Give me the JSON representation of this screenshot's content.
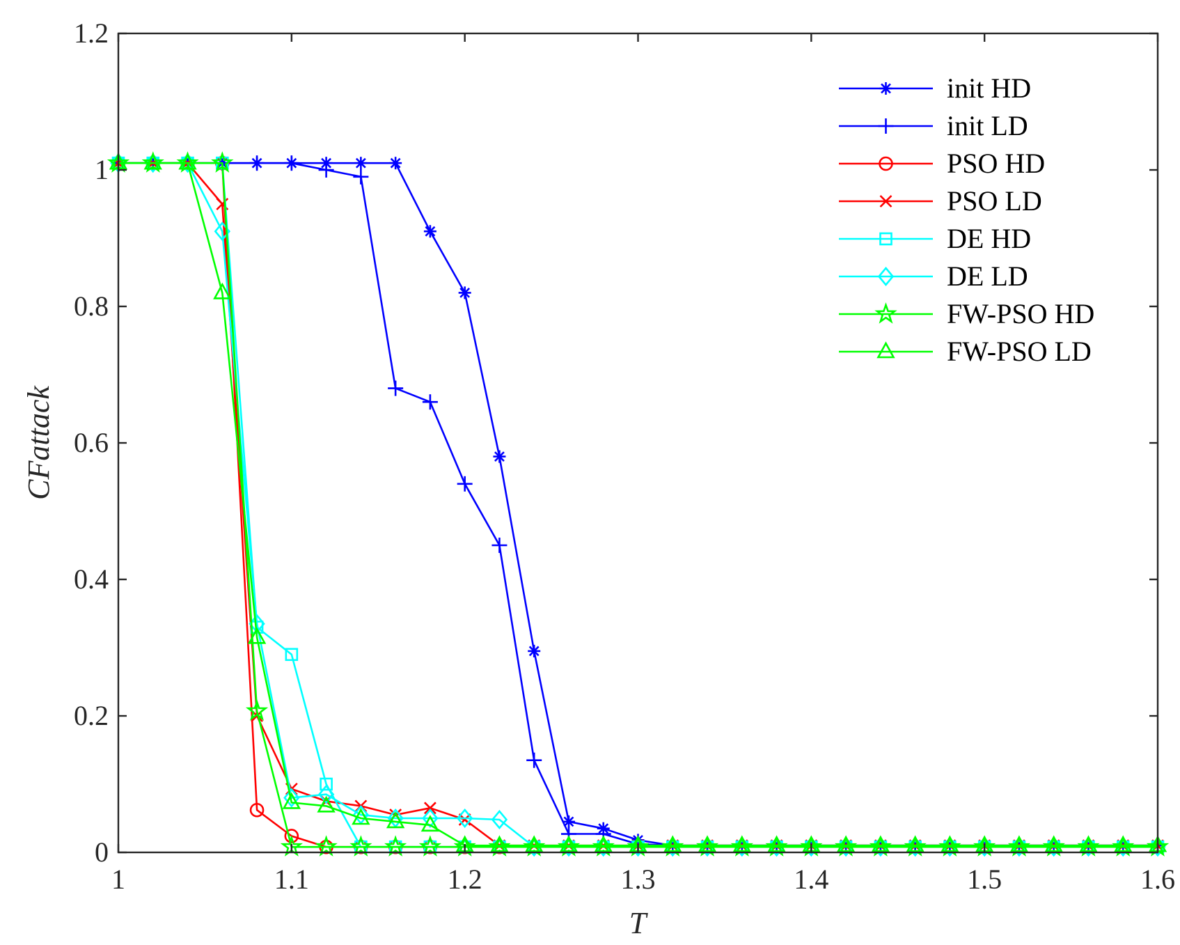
{
  "chart_data": {
    "type": "line",
    "title": "",
    "xlabel": "T",
    "ylabel": "CFattack",
    "xlim": [
      1,
      1.6
    ],
    "ylim": [
      0,
      1.2
    ],
    "xticks": [
      1,
      1.1,
      1.2,
      1.3,
      1.4,
      1.5,
      1.6
    ],
    "xtick_labels": [
      "1",
      "1.1",
      "1.2",
      "1.3",
      "1.4",
      "1.5",
      "1.6"
    ],
    "yticks": [
      0,
      0.2,
      0.4,
      0.6,
      0.8,
      1,
      1.2
    ],
    "ytick_labels": [
      "0",
      "0.2",
      "0.4",
      "0.6",
      "0.8",
      "1",
      "1.2"
    ],
    "grid": false,
    "legend_position": "top-right",
    "x": [
      1.0,
      1.02,
      1.04,
      1.06,
      1.08,
      1.1,
      1.12,
      1.14,
      1.16,
      1.18,
      1.2,
      1.22,
      1.24,
      1.26,
      1.28,
      1.3,
      1.32,
      1.34,
      1.36,
      1.38,
      1.4,
      1.42,
      1.44,
      1.46,
      1.48,
      1.5,
      1.52,
      1.54,
      1.56,
      1.58,
      1.6
    ],
    "series": [
      {
        "name": "init HD",
        "color": "#0000ff",
        "marker": "asterisk",
        "values": [
          1.01,
          1.01,
          1.01,
          1.01,
          1.01,
          1.01,
          1.01,
          1.01,
          1.01,
          0.91,
          0.82,
          0.58,
          0.295,
          0.045,
          0.035,
          0.018,
          0.01,
          0.01,
          0.01,
          0.01,
          0.01,
          0.01,
          0.01,
          0.01,
          0.01,
          0.01,
          0.01,
          0.01,
          0.01,
          0.01,
          0.01
        ]
      },
      {
        "name": "init LD",
        "color": "#0000ff",
        "marker": "plus",
        "values": [
          1.01,
          1.01,
          1.01,
          1.01,
          1.01,
          1.01,
          1.0,
          0.99,
          0.68,
          0.66,
          0.54,
          0.45,
          0.135,
          0.027,
          0.027,
          0.012,
          0.01,
          0.01,
          0.01,
          0.01,
          0.01,
          0.01,
          0.01,
          0.01,
          0.01,
          0.01,
          0.01,
          0.01,
          0.01,
          0.01,
          0.01
        ]
      },
      {
        "name": "PSO HD",
        "color": "#ff0000",
        "marker": "circle",
        "values": [
          1.01,
          1.01,
          1.01,
          1.01,
          0.062,
          0.024,
          0.008,
          0.008,
          0.008,
          0.008,
          0.008,
          0.008,
          0.008,
          0.008,
          0.008,
          0.008,
          0.008,
          0.008,
          0.008,
          0.008,
          0.008,
          0.008,
          0.008,
          0.008,
          0.008,
          0.008,
          0.008,
          0.008,
          0.008,
          0.008,
          0.008
        ]
      },
      {
        "name": "PSO LD",
        "color": "#ff0000",
        "marker": "x",
        "values": [
          1.01,
          1.01,
          1.01,
          0.95,
          0.2,
          0.093,
          0.075,
          0.068,
          0.055,
          0.065,
          0.048,
          0.01,
          0.01,
          0.01,
          0.01,
          0.01,
          0.01,
          0.01,
          0.01,
          0.01,
          0.01,
          0.01,
          0.01,
          0.01,
          0.01,
          0.01,
          0.01,
          0.01,
          0.01,
          0.01,
          0.01
        ]
      },
      {
        "name": "DE HD",
        "color": "#00ffff",
        "marker": "square",
        "values": [
          1.01,
          1.01,
          1.01,
          1.01,
          0.33,
          0.29,
          0.1,
          0.008,
          0.008,
          0.008,
          0.008,
          0.008,
          0.008,
          0.008,
          0.008,
          0.008,
          0.008,
          0.008,
          0.008,
          0.008,
          0.008,
          0.008,
          0.008,
          0.008,
          0.008,
          0.008,
          0.008,
          0.008,
          0.008,
          0.008,
          0.008
        ]
      },
      {
        "name": "DE LD",
        "color": "#00ffff",
        "marker": "diamond",
        "values": [
          1.01,
          1.01,
          1.01,
          0.91,
          0.335,
          0.08,
          0.085,
          0.055,
          0.05,
          0.05,
          0.05,
          0.048,
          0.008,
          0.008,
          0.008,
          0.008,
          0.008,
          0.008,
          0.008,
          0.008,
          0.008,
          0.008,
          0.008,
          0.008,
          0.008,
          0.008,
          0.008,
          0.008,
          0.008,
          0.008,
          0.008
        ]
      },
      {
        "name": "FW-PSO HD",
        "color": "#00ff00",
        "marker": "pentagram",
        "values": [
          1.01,
          1.01,
          1.01,
          1.01,
          0.207,
          0.008,
          0.008,
          0.008,
          0.008,
          0.008,
          0.008,
          0.008,
          0.008,
          0.008,
          0.008,
          0.008,
          0.008,
          0.008,
          0.008,
          0.008,
          0.008,
          0.008,
          0.008,
          0.008,
          0.008,
          0.008,
          0.008,
          0.008,
          0.008,
          0.008,
          0.008
        ]
      },
      {
        "name": "FW-PSO LD",
        "color": "#00ff00",
        "marker": "triangle",
        "values": [
          1.01,
          1.01,
          1.01,
          0.82,
          0.315,
          0.073,
          0.068,
          0.05,
          0.045,
          0.04,
          0.01,
          0.01,
          0.01,
          0.01,
          0.01,
          0.01,
          0.01,
          0.01,
          0.01,
          0.01,
          0.01,
          0.01,
          0.01,
          0.01,
          0.01,
          0.01,
          0.01,
          0.01,
          0.01,
          0.01,
          0.01
        ]
      }
    ]
  }
}
